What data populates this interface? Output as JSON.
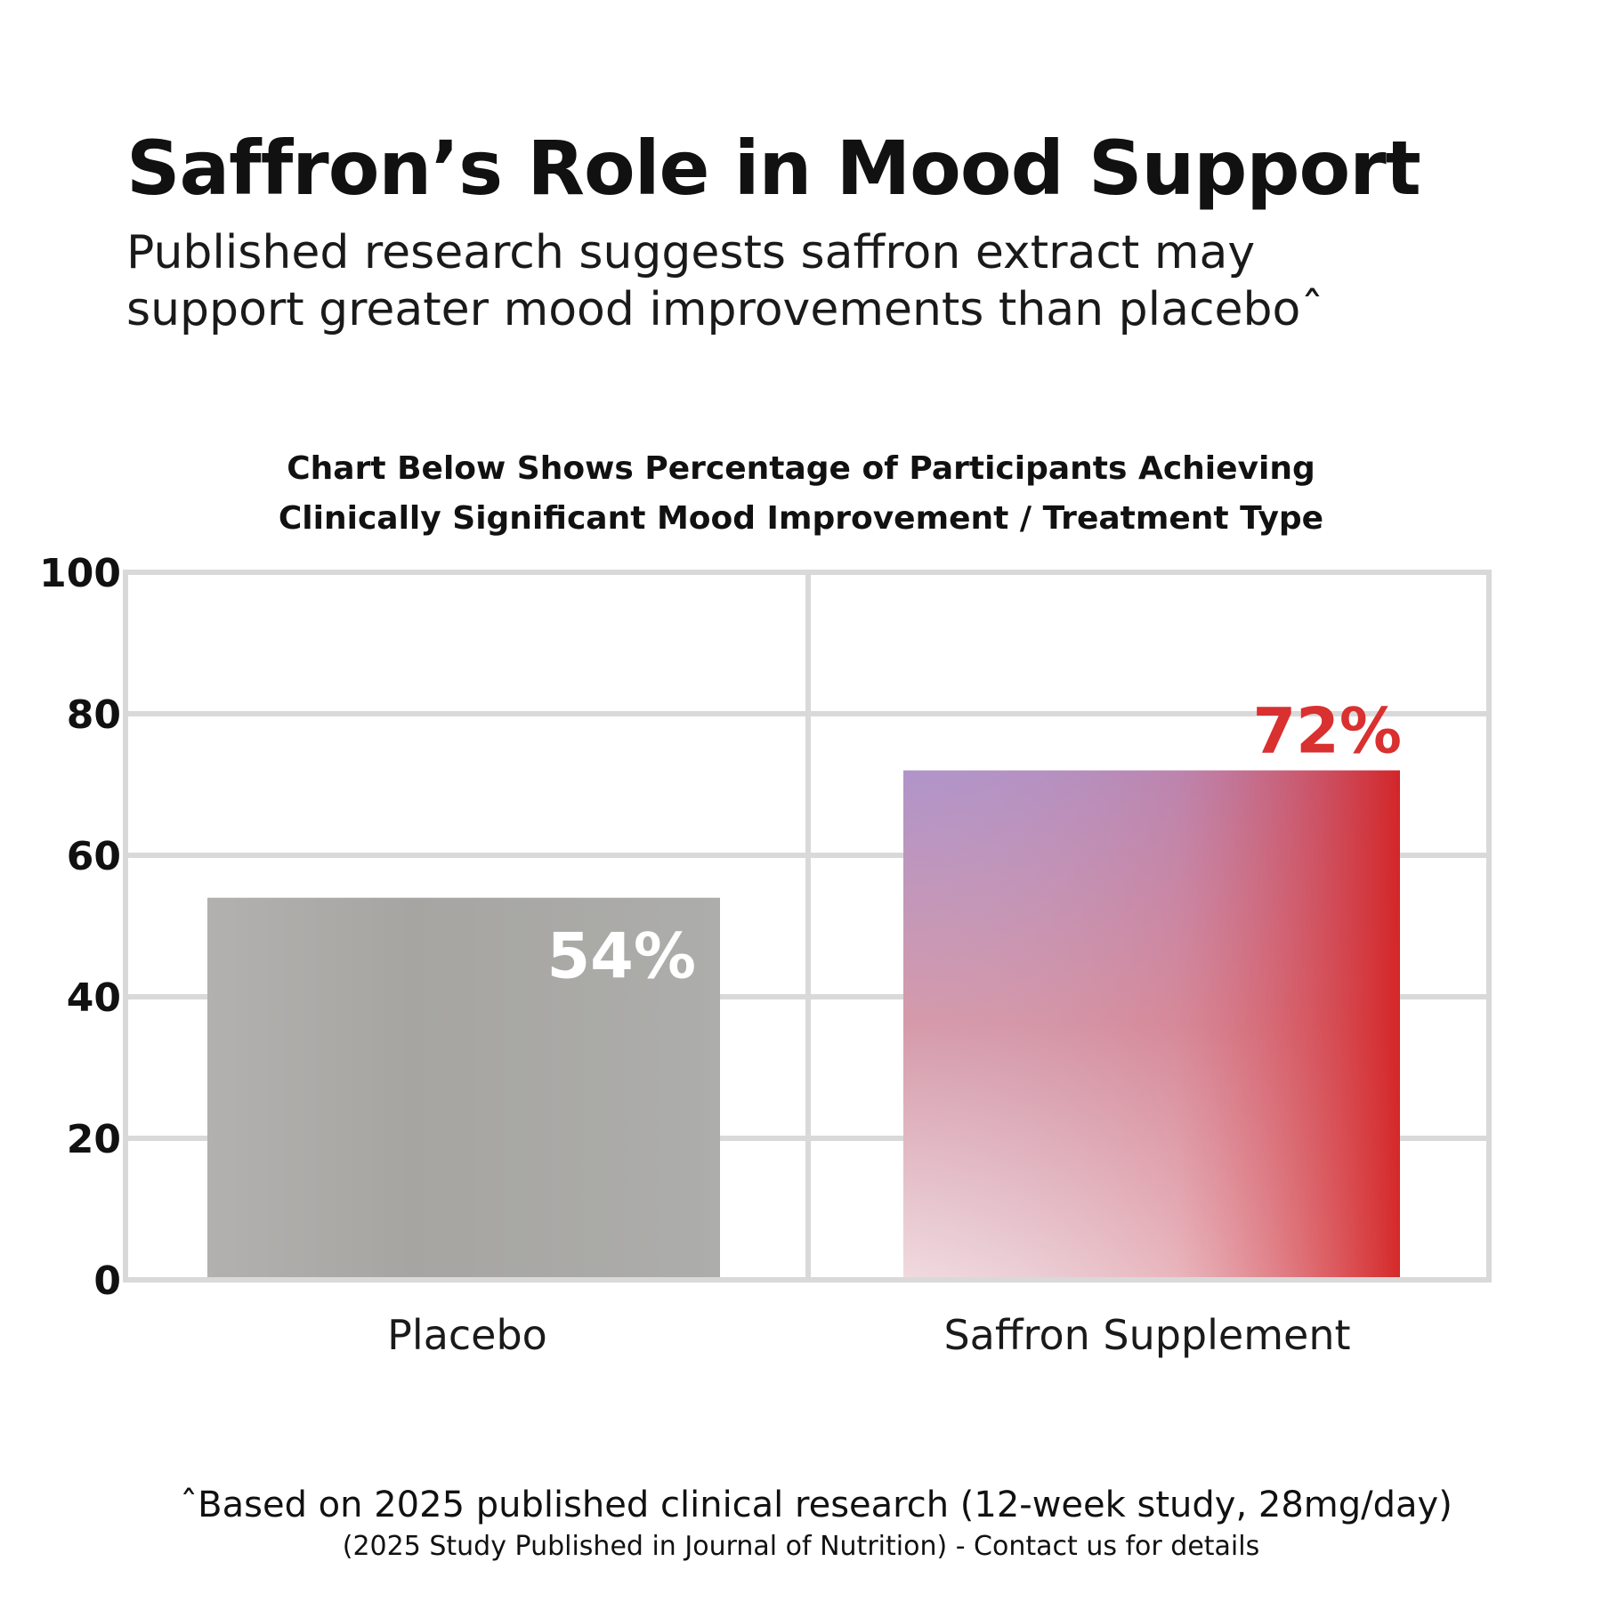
{
  "title": "Saffron’s Role in Mood Support",
  "subtitle_lines": [
    "Published research suggests saffron extract may",
    "support greater mood improvements than placeboˆ"
  ],
  "footnotes": [
    "ˆBased on 2025 published clinical research (12-week study, 28mg/day)",
    "(2025 Study Published in Journal of Nutrition) - Contact us for details"
  ],
  "chart_data": {
    "type": "bar",
    "title_lines": [
      "Chart Below Shows Percentage of Participants Achieving",
      "Clinically Significant Mood Improvement / Treatment Type"
    ],
    "categories": [
      "Placebo",
      "Saffron Supplement"
    ],
    "values": [
      54,
      72
    ],
    "data_labels": [
      "54%",
      "72%"
    ],
    "ylim": [
      0,
      100
    ],
    "yticks": [
      0,
      20,
      40,
      60,
      80,
      100
    ],
    "grid": true,
    "colors": {
      "placebo": "#a8a7a4",
      "saffron_top": "#b094c9",
      "saffron_right": "#d42020",
      "saffron_bottom": "#f0d8dc",
      "label_72": "#d93030",
      "label_54": "#ffffff",
      "grid": "#d9d9d9"
    }
  }
}
